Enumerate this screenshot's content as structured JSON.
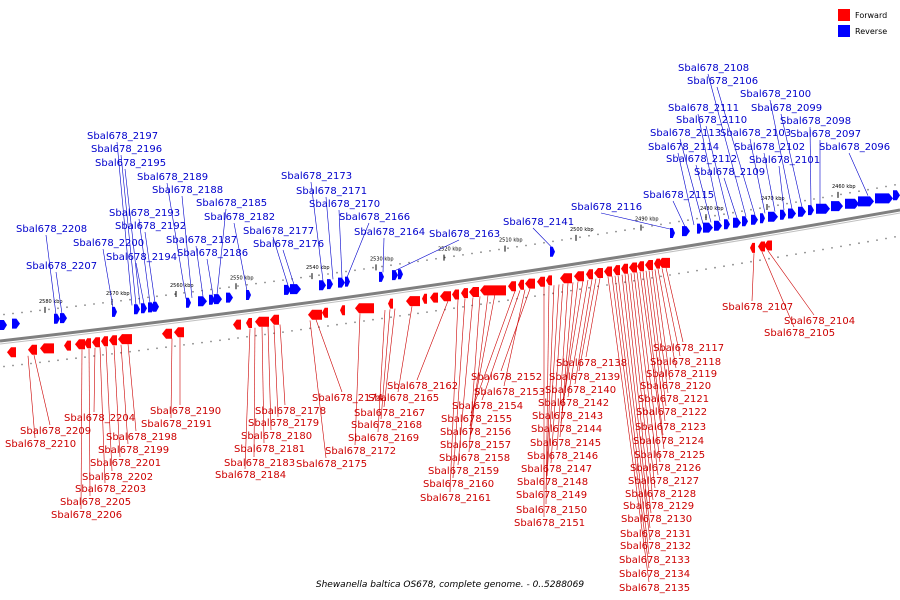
{
  "caption": "Shewanella baltica OS678, complete genome. - 0..5288069",
  "legend": [
    {
      "label": "Forward",
      "color": "#ff0000"
    },
    {
      "label": "Reverse",
      "color": "#0000ff"
    }
  ],
  "colors": {
    "forward": "#ff0000",
    "reverse": "#0000ff",
    "backbone": "#808080",
    "forward_text": "#cc0000",
    "reverse_text": "#0000cc"
  },
  "ticks": [
    "2460 kbp",
    "2470 kbp",
    "2480 kbp",
    "2490 kbp",
    "2500 kbp",
    "2510 kbp",
    "2520 kbp",
    "2530 kbp",
    "2540 kbp",
    "2550 kbp",
    "2560 kbp",
    "2570 kbp",
    "2580 kbp"
  ],
  "reverse_labels": [
    "Sbal678_2096",
    "Sbal678_2097",
    "Sbal678_2098",
    "Sbal678_2099",
    "Sbal678_2100",
    "Sbal678_2101",
    "Sbal678_2102",
    "Sbal678_2103",
    "Sbal678_2106",
    "Sbal678_2108",
    "Sbal678_2109",
    "Sbal678_2110",
    "Sbal678_2111",
    "Sbal678_2112",
    "Sbal678_2113",
    "Sbal678_2114",
    "Sbal678_2115",
    "Sbal678_2116",
    "Sbal678_2141",
    "Sbal678_2163",
    "Sbal678_2164",
    "Sbal678_2166",
    "Sbal678_2170",
    "Sbal678_2171",
    "Sbal678_2173",
    "Sbal678_2176",
    "Sbal678_2177",
    "Sbal678_2182",
    "Sbal678_2185",
    "Sbal678_2186",
    "Sbal678_2187",
    "Sbal678_2188",
    "Sbal678_2189",
    "Sbal678_2192",
    "Sbal678_2193",
    "Sbal678_2194",
    "Sbal678_2195",
    "Sbal678_2196",
    "Sbal678_2197",
    "Sbal678_2200",
    "Sbal678_2207",
    "Sbal678_2208"
  ],
  "forward_labels": [
    "Sbal678_2104",
    "Sbal678_2105",
    "Sbal678_2107",
    "Sbal678_2117",
    "Sbal678_2118",
    "Sbal678_2119",
    "Sbal678_2120",
    "Sbal678_2121",
    "Sbal678_2122",
    "Sbal678_2123",
    "Sbal678_2124",
    "Sbal678_2125",
    "Sbal678_2126",
    "Sbal678_2127",
    "Sbal678_2128",
    "Sbal678_2129",
    "Sbal678_2130",
    "Sbal678_2131",
    "Sbal678_2132",
    "Sbal678_2133",
    "Sbal678_2134",
    "Sbal678_2135",
    "Sbal678_2138",
    "Sbal678_2139",
    "Sbal678_2140",
    "Sbal678_2142",
    "Sbal678_2143",
    "Sbal678_2144",
    "Sbal678_2145",
    "Sbal678_2146",
    "Sbal678_2147",
    "Sbal678_2148",
    "Sbal678_2149",
    "Sbal678_2150",
    "Sbal678_2151",
    "Sbal678_2152",
    "Sbal678_2153",
    "Sbal678_2154",
    "Sbal678_2155",
    "Sbal678_2156",
    "Sbal678_2157",
    "Sbal678_2158",
    "Sbal678_2159",
    "Sbal678_2160",
    "Sbal678_2161",
    "Sbal678_2162",
    "Sbal678_2165",
    "Sbal678_2167",
    "Sbal678_2168",
    "Sbal678_2169",
    "Sbal678_2172",
    "Sbal678_2174",
    "Sbal678_2175",
    "Sbal678_2178",
    "Sbal678_2179",
    "Sbal678_2180",
    "Sbal678_2181",
    "Sbal678_2183",
    "Sbal678_2184",
    "Sbal678_2190",
    "Sbal678_2191",
    "Sbal678_2198",
    "Sbal678_2199",
    "Sbal678_2201",
    "Sbal678_2202",
    "Sbal678_2203",
    "Sbal678_2204",
    "Sbal678_2205",
    "Sbal678_2206",
    "Sbal678_2209",
    "Sbal678_2210"
  ]
}
